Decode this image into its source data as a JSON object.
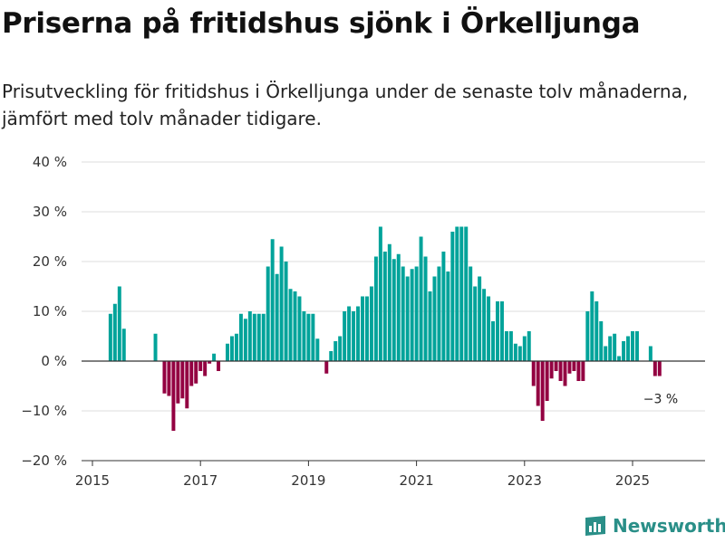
{
  "title": "Priserna på fritidshus sjönk i Örkelljunga",
  "subtitle": "Prisutveckling för fritidshus i Örkelljunga under de senaste tolv månaderna, jämfört med tolv månader tidigare.",
  "brand": "Newsworthy",
  "colors": {
    "positive": "#00a39a",
    "negative": "#930041",
    "grid": "#dedede",
    "zero": "#333333",
    "text": "#333333"
  },
  "chart_data": {
    "type": "bar",
    "ylabel": "",
    "xlabel": "",
    "ylim": [
      -20,
      40
    ],
    "yticks": [
      -20,
      -10,
      0,
      10,
      20,
      30,
      40
    ],
    "ytick_labels": [
      "−20 %",
      "−10 %",
      "0 %",
      "10 %",
      "20 %",
      "30 %",
      "40 %"
    ],
    "xticks": [
      2015,
      2017,
      2019,
      2021,
      2023,
      2025
    ],
    "xtick_labels": [
      "2015",
      "2017",
      "2019",
      "2021",
      "2023",
      "2025"
    ],
    "x_start": "2015-05",
    "annotation": {
      "text": "−3 %"
    },
    "values": [
      9.5,
      11.5,
      15,
      6.5,
      null,
      null,
      null,
      null,
      null,
      null,
      5.5,
      null,
      -6.5,
      -7,
      -14,
      -8.5,
      -7.5,
      -9.5,
      -5,
      -4.5,
      -2,
      -3,
      -0.5,
      1.5,
      -2,
      null,
      3.5,
      5,
      5.5,
      9.5,
      8.5,
      10,
      9.5,
      9.5,
      9.5,
      19,
      24.5,
      17.5,
      23,
      20,
      14.5,
      14,
      13,
      10,
      9.5,
      9.5,
      4.5,
      null,
      -2.5,
      2,
      4,
      5,
      10,
      11,
      10,
      11,
      13,
      13,
      15,
      21,
      27,
      22,
      23.5,
      20.5,
      21.5,
      19,
      17,
      18.5,
      19,
      25,
      21,
      14,
      17,
      19,
      22,
      18,
      26,
      27,
      27,
      27,
      19,
      15,
      17,
      14.5,
      13,
      8,
      12,
      12,
      6,
      6,
      3.5,
      3,
      5,
      6,
      -5,
      -9,
      -12,
      -8,
      -3.5,
      -2,
      -4,
      -5,
      -2.5,
      -2,
      -4,
      -4,
      10,
      14,
      12,
      8,
      3,
      5,
      5.5,
      1,
      4,
      5,
      6,
      6,
      null,
      null,
      3,
      -3,
      -3
    ]
  }
}
